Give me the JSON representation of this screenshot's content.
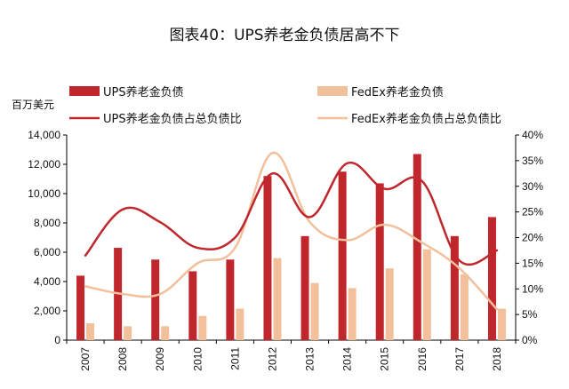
{
  "chart_data": {
    "type": "bar",
    "title": "图表40：UPS养老金负债居高不下",
    "left_unit": "百万美元",
    "categories": [
      "2007",
      "2008",
      "2009",
      "2010",
      "2011",
      "2012",
      "2013",
      "2014",
      "2015",
      "2016",
      "2017",
      "2018"
    ],
    "y_left": {
      "range": [
        0,
        14000
      ],
      "ticks": [
        "0",
        "2,000",
        "4,000",
        "6,000",
        "8,000",
        "10,000",
        "12,000",
        "14,000"
      ]
    },
    "y_right": {
      "range": [
        0,
        40
      ],
      "ticks": [
        "0%",
        "5%",
        "10%",
        "15%",
        "20%",
        "25%",
        "30%",
        "35%",
        "40%"
      ]
    },
    "series": [
      {
        "name": "UPS养老金负债",
        "kind": "bar",
        "axis": "left",
        "color": "#C0272D",
        "values": [
          4400,
          6300,
          5500,
          4700,
          5500,
          11200,
          7100,
          11500,
          10700,
          12700,
          7100,
          8400
        ]
      },
      {
        "name": "FedEx养老金负债",
        "kind": "bar",
        "axis": "left",
        "color": "#F2C09B",
        "values": [
          1150,
          950,
          950,
          1650,
          2150,
          5600,
          3900,
          3550,
          4900,
          6200,
          4500,
          2150
        ]
      },
      {
        "name": "UPS养老金负债占总负债比",
        "kind": "line",
        "axis": "right",
        "color": "#C0272D",
        "values": [
          16.5,
          25.5,
          23.0,
          18.0,
          20.0,
          32.5,
          24.0,
          34.5,
          29.5,
          31.0,
          15.5,
          17.5
        ]
      },
      {
        "name": "FedEx养老金负债占总负债比",
        "kind": "line",
        "axis": "right",
        "color": "#F2C09B",
        "values": [
          10.5,
          9.0,
          9.0,
          15.0,
          18.0,
          36.5,
          23.0,
          19.5,
          22.5,
          19.0,
          14.0,
          6.0
        ]
      }
    ],
    "legend_position": "top"
  }
}
